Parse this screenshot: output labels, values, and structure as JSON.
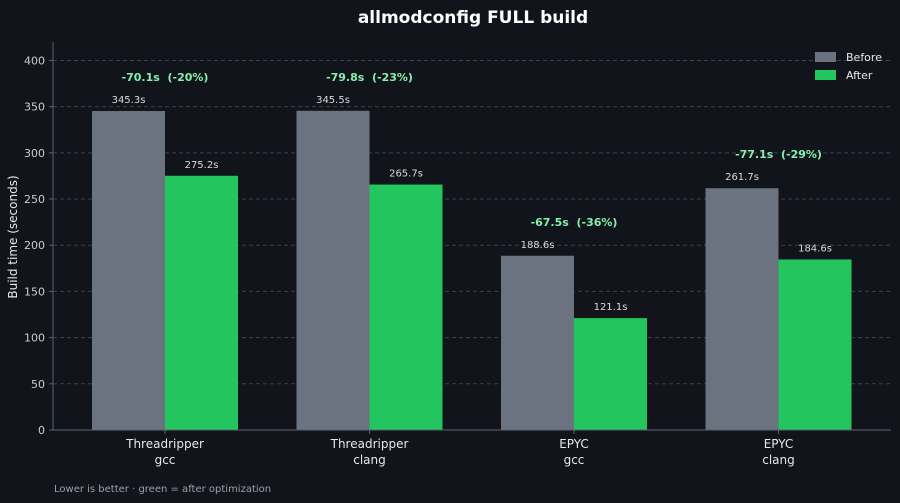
{
  "chart_data": {
    "type": "bar",
    "title": "allmodconfig FULL build",
    "ylabel": "Build time (seconds)",
    "xlabel": "",
    "ylim": [
      0,
      420
    ],
    "yticks": [
      0,
      50,
      100,
      150,
      200,
      250,
      300,
      350,
      400
    ],
    "grid": true,
    "legend_position": "top-right",
    "categories": [
      [
        "Threadripper",
        "gcc"
      ],
      [
        "Threadripper",
        "clang"
      ],
      [
        "EPYC",
        "gcc"
      ],
      [
        "EPYC",
        "clang"
      ]
    ],
    "series": [
      {
        "name": "Before",
        "color": "#6b7280",
        "values": [
          345.3,
          345.5,
          188.6,
          261.7
        ],
        "labels": [
          "345.3s",
          "345.5s",
          "188.6s",
          "261.7s"
        ]
      },
      {
        "name": "After",
        "color": "#22c55e",
        "values": [
          275.2,
          265.7,
          121.1,
          184.6
        ],
        "labels": [
          "275.2s",
          "265.7s",
          "121.1s",
          "184.6s"
        ]
      }
    ],
    "annotations": [
      "-70.1s  (-20%)",
      "-79.8s  (-23%)",
      "-67.5s  (-36%)",
      "-77.1s  (-29%)"
    ],
    "footer": "Lower is better  ·  green = after optimization"
  }
}
